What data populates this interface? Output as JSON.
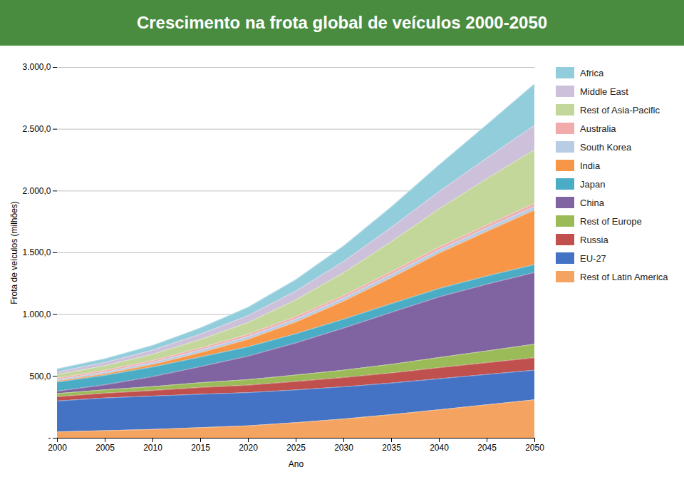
{
  "chart_data": {
    "type": "area",
    "stacked": true,
    "title": "Crescimento na frota global de veículos 2000-2050",
    "xlabel": "Ano",
    "ylabel": "Frota de veículos (milhões)",
    "x": [
      2000,
      2005,
      2010,
      2015,
      2020,
      2025,
      2030,
      2035,
      2040,
      2045,
      2050
    ],
    "xlim": [
      2000,
      2050
    ],
    "xticks": [
      2000,
      2005,
      2010,
      2015,
      2020,
      2025,
      2030,
      2035,
      2040,
      2045,
      2050
    ],
    "ylim": [
      0,
      3000
    ],
    "yticks": [
      {
        "value": 0,
        "label": "-"
      },
      {
        "value": 500,
        "label": "500,0"
      },
      {
        "value": 1000,
        "label": "1.000,0"
      },
      {
        "value": 1500,
        "label": "1.500,0"
      },
      {
        "value": 2000,
        "label": "2.000,0"
      },
      {
        "value": 2500,
        "label": "2.500,0"
      },
      {
        "value": 3000,
        "label": "3.000,0"
      }
    ],
    "grid": true,
    "legend": "right",
    "series": [
      {
        "name": "Rest of Latin America",
        "color": "#F4A460",
        "values": [
          50,
          60,
          70,
          85,
          100,
          125,
          155,
          190,
          230,
          270,
          310
        ]
      },
      {
        "name": "EU-27",
        "color": "#4472C4",
        "values": [
          250,
          265,
          270,
          270,
          268,
          265,
          260,
          255,
          250,
          245,
          240
        ]
      },
      {
        "name": "Russia",
        "color": "#C0504D",
        "values": [
          35,
          38,
          45,
          55,
          60,
          68,
          75,
          82,
          90,
          95,
          100
        ]
      },
      {
        "name": "Rest of Europe",
        "color": "#9BBB59",
        "values": [
          25,
          28,
          32,
          38,
          45,
          52,
          60,
          70,
          82,
          95,
          110
        ]
      },
      {
        "name": "China",
        "color": "#8064A2",
        "values": [
          20,
          40,
          80,
          130,
          190,
          260,
          340,
          420,
          490,
          540,
          580
        ]
      },
      {
        "name": "Japan",
        "color": "#4BACC6",
        "values": [
          73,
          76,
          78,
          78,
          76,
          74,
          72,
          70,
          68,
          66,
          64
        ]
      },
      {
        "name": "India",
        "color": "#F79646",
        "values": [
          8,
          12,
          20,
          35,
          60,
          95,
          145,
          210,
          285,
          360,
          440
        ]
      },
      {
        "name": "South Korea",
        "color": "#B8CCE4",
        "values": [
          12,
          15,
          18,
          21,
          23,
          25,
          26,
          27,
          28,
          29,
          30
        ]
      },
      {
        "name": "Australia",
        "color": "#F2ABAB",
        "values": [
          12,
          14,
          15,
          17,
          18,
          19,
          20,
          21,
          22,
          23,
          24
        ]
      },
      {
        "name": "Rest of Asia-Pacific",
        "color": "#C4D79B",
        "values": [
          30,
          38,
          50,
          68,
          95,
          135,
          185,
          245,
          310,
          375,
          435
        ]
      },
      {
        "name": "Middle East",
        "color": "#CCC0DA",
        "values": [
          20,
          26,
          34,
          44,
          56,
          72,
          92,
          115,
          140,
          168,
          198
        ]
      },
      {
        "name": "Africa",
        "color": "#92CDDC",
        "values": [
          25,
          30,
          38,
          50,
          68,
          92,
          125,
          165,
          215,
          270,
          335
        ]
      }
    ]
  }
}
